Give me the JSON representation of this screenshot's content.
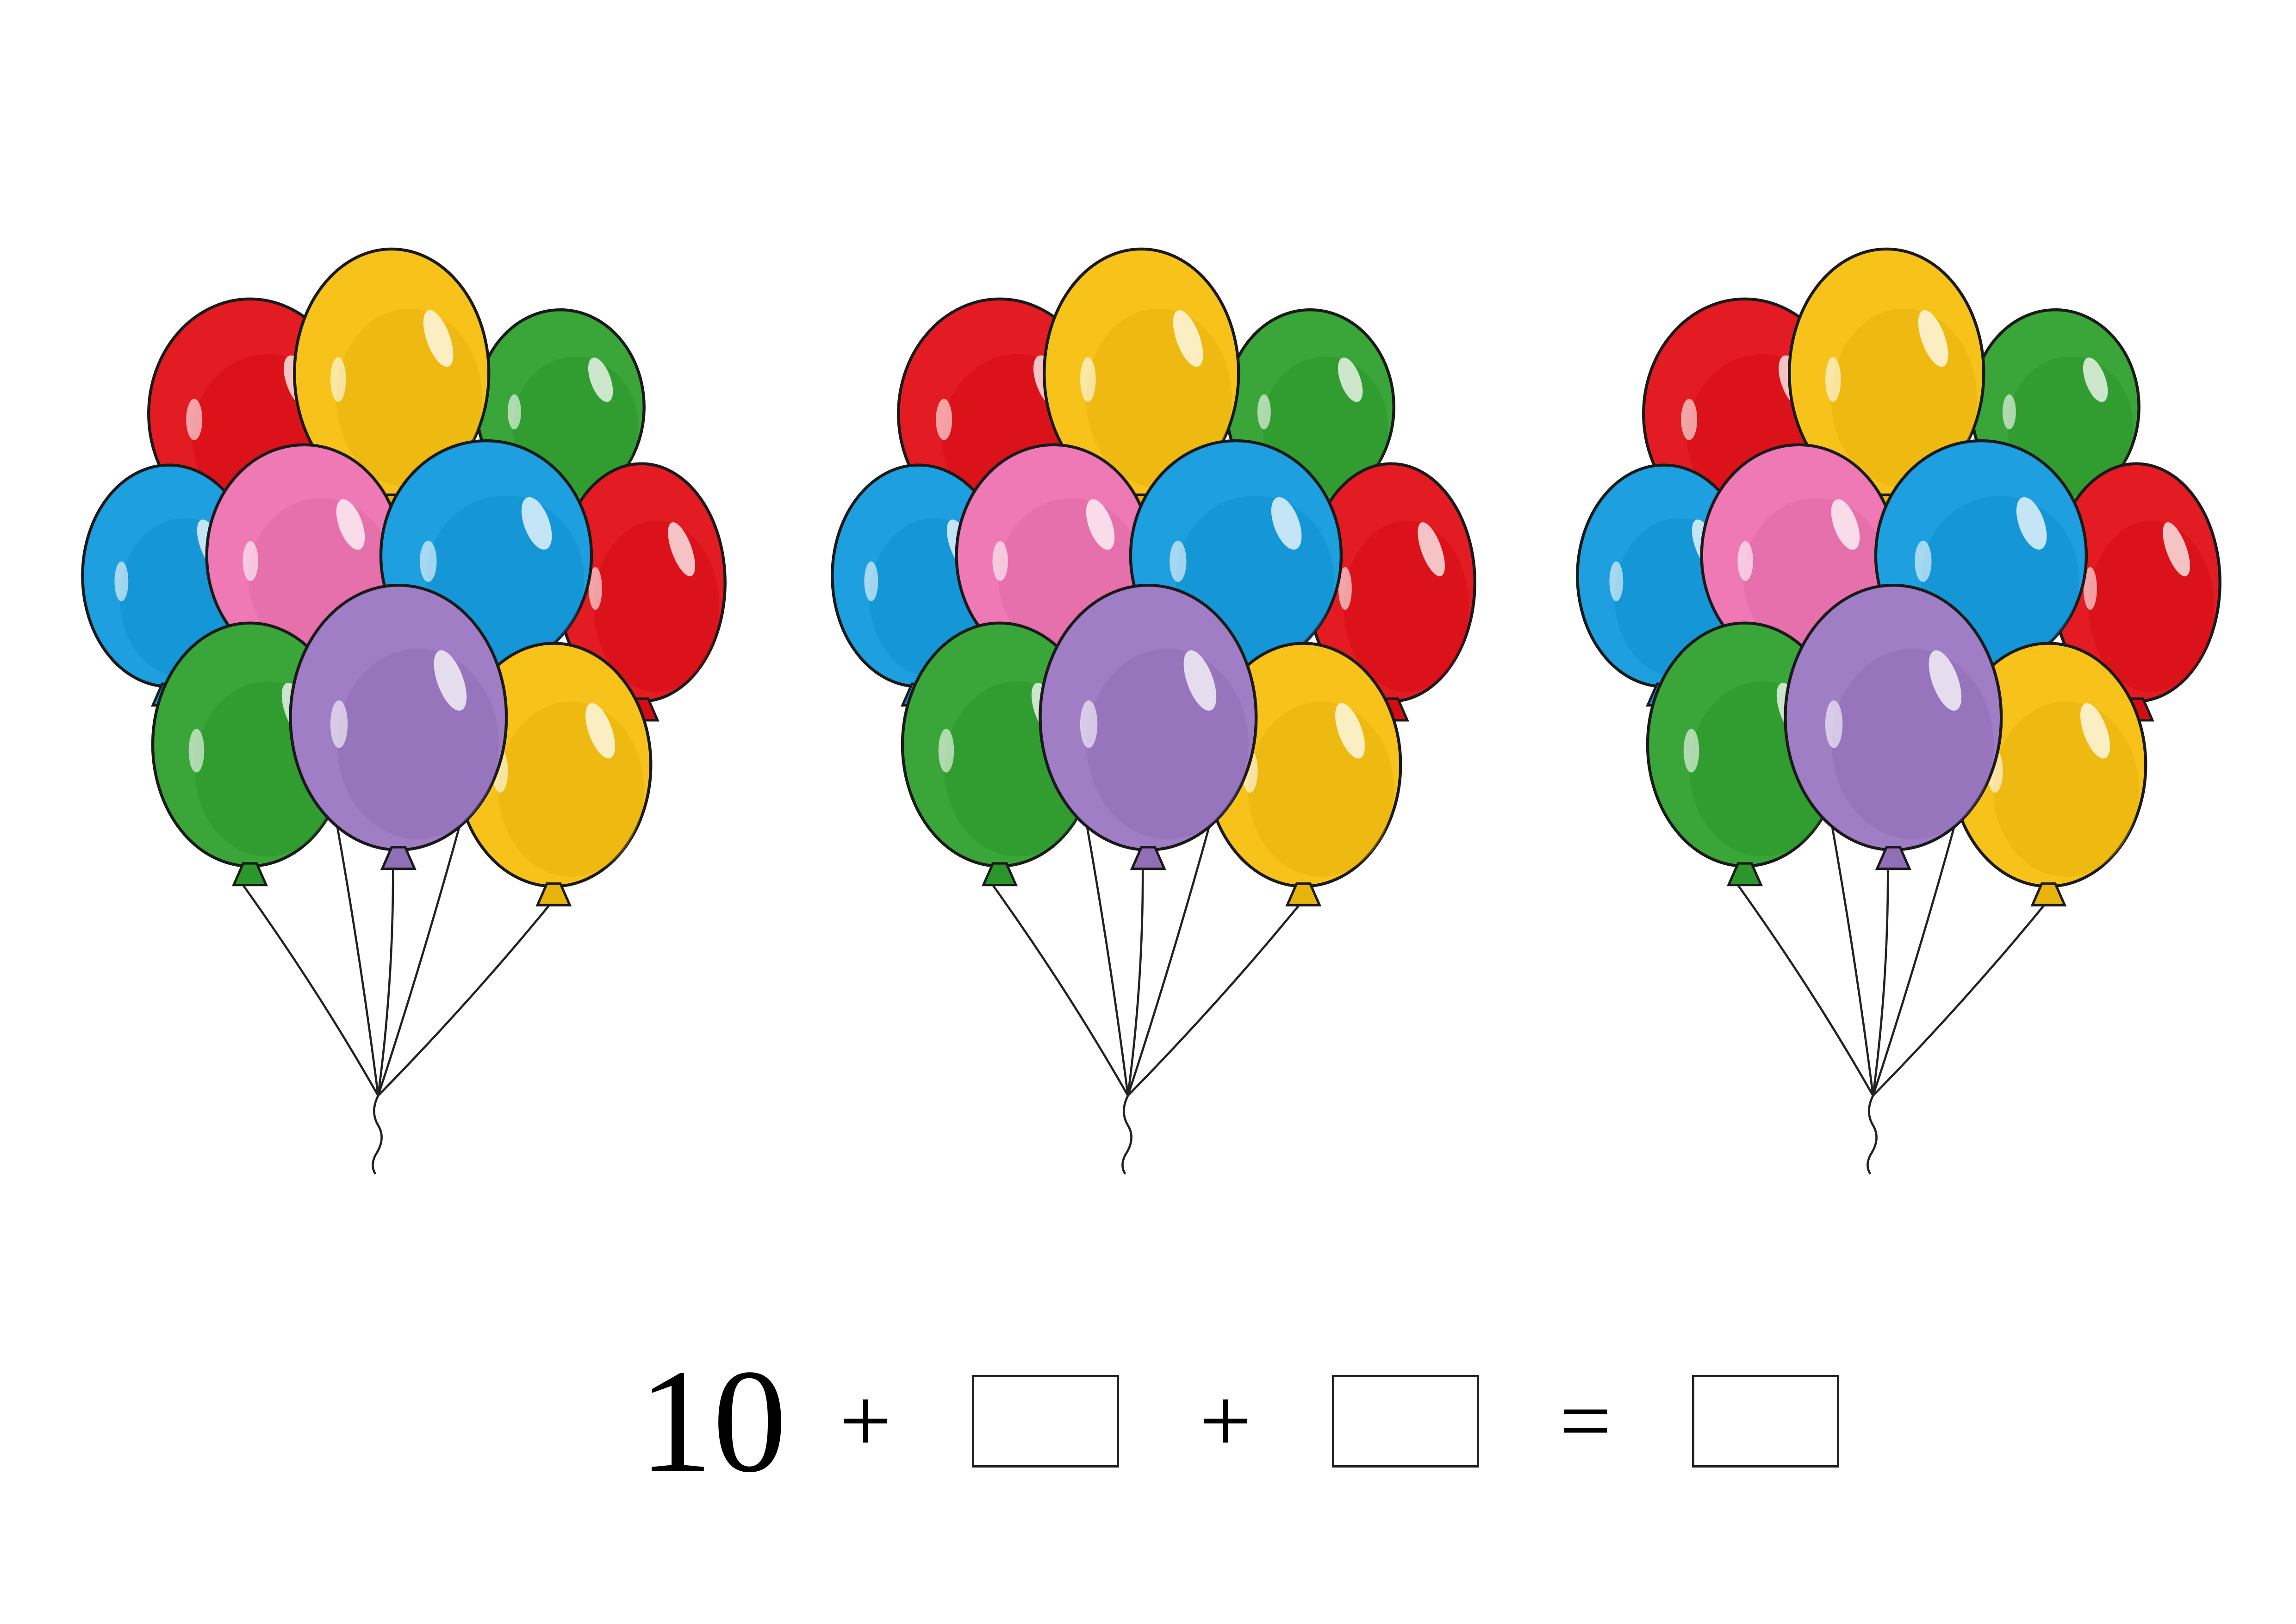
{
  "worksheet": {
    "bunches": [
      {
        "name": "balloon-bunch-1",
        "balloon_count": 10
      },
      {
        "name": "balloon-bunch-2",
        "balloon_count": 10
      },
      {
        "name": "balloon-bunch-3",
        "balloon_count": 10
      }
    ],
    "balloon_colors": {
      "red": "#e31b23",
      "yellow": "#f7c31b",
      "green": "#3aa63a",
      "blue": "#1e9fdf",
      "pink": "#ee79b4",
      "purple": "#a07ec6"
    },
    "equation": {
      "first_number": "10",
      "plus_1": "+",
      "plus_2": "+",
      "equals": "=",
      "box_1": "",
      "box_2": "",
      "box_3": ""
    }
  }
}
